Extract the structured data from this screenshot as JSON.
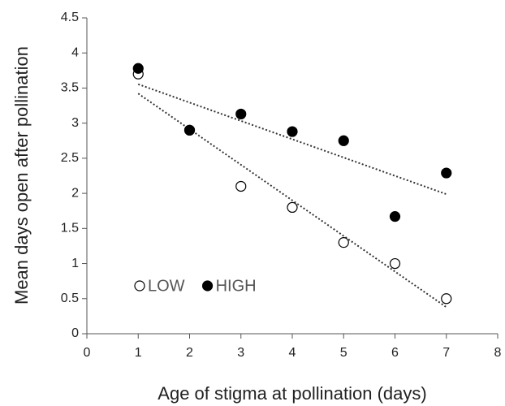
{
  "chart_data": {
    "type": "scatter",
    "xlabel": "Age of stigma at pollination (days)",
    "ylabel": "Mean days open after pollination",
    "xlim": [
      0,
      8
    ],
    "xticks": [
      0,
      1,
      2,
      3,
      4,
      5,
      6,
      7,
      8
    ],
    "ylim": [
      0,
      4.5
    ],
    "yticks": [
      0,
      0.5,
      1,
      1.5,
      2,
      2.5,
      3,
      3.5,
      4,
      4.5
    ],
    "trendline": "linear",
    "legend": "lower left",
    "series": [
      {
        "name": "LOW",
        "color": "#000000",
        "filled": false,
        "x": [
          1,
          2,
          3,
          4,
          5,
          6,
          7
        ],
        "values": [
          3.7,
          2.9,
          2.1,
          1.8,
          1.3,
          1.0,
          0.5
        ]
      },
      {
        "name": "HIGH",
        "color": "#000000",
        "filled": true,
        "x": [
          1,
          2,
          3,
          4,
          5,
          6,
          7
        ],
        "values": [
          3.78,
          2.9,
          3.13,
          2.88,
          2.75,
          1.67,
          2.29
        ]
      }
    ]
  }
}
